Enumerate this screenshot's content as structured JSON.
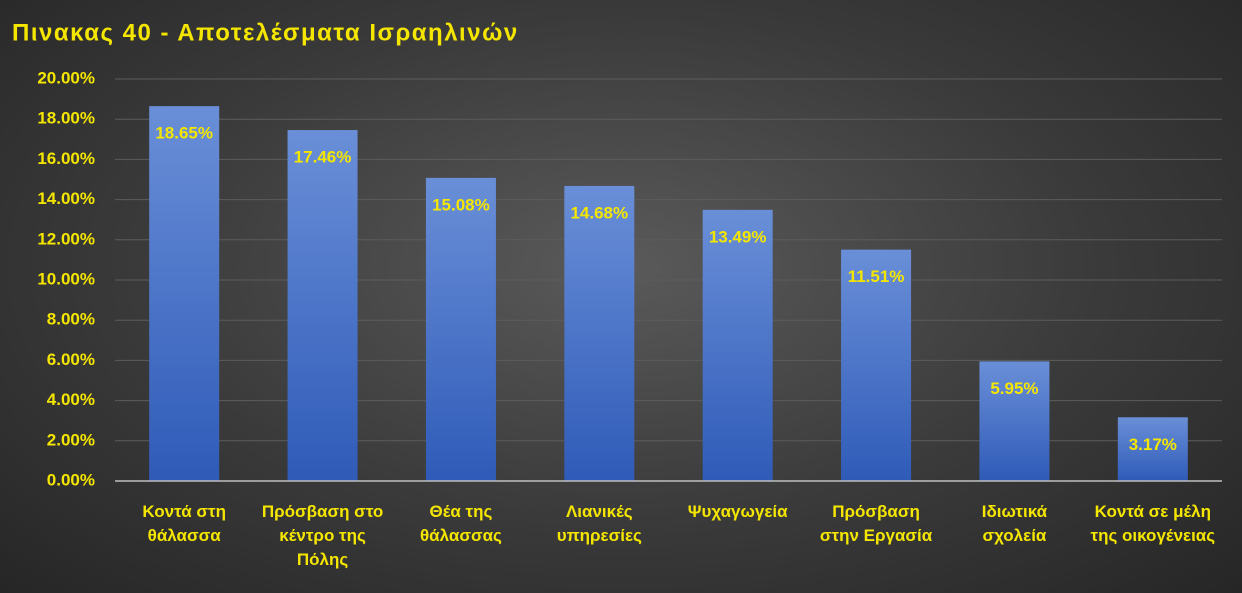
{
  "chart_data": {
    "type": "bar",
    "title": "Πινακας 40 - Αποτελέσματα Ισραηλινών",
    "categories": [
      "Κοντά στη θάλασσα",
      "Πρόσβαση στο κέντρο της Πόλης",
      "Θέα της θάλασσας",
      "Λιανικές υπηρεσίες",
      "Ψυχαγωγεία",
      "Πρόσβαση στην Εργασία",
      "Ιδιωτικά σχολεία",
      "Κοντά σε μέλη της οικογένειας"
    ],
    "values": [
      18.65,
      17.46,
      15.08,
      14.68,
      13.49,
      11.51,
      5.95,
      3.17
    ],
    "value_labels": [
      "18.65%",
      "17.46%",
      "15.08%",
      "14.68%",
      "13.49%",
      "11.51%",
      "5.95%",
      "3.17%"
    ],
    "color": "#4472c4",
    "ylim": [
      0,
      20
    ],
    "yticks": [
      {
        "value": 0,
        "label": "0.00%"
      },
      {
        "value": 2,
        "label": "2.00%"
      },
      {
        "value": 4,
        "label": "4.00%"
      },
      {
        "value": 6,
        "label": "6.00%"
      },
      {
        "value": 8,
        "label": "8.00%"
      },
      {
        "value": 10,
        "label": "10.00%"
      },
      {
        "value": 12,
        "label": "12.00%"
      },
      {
        "value": 14,
        "label": "14.00%"
      },
      {
        "value": 16,
        "label": "16.00%"
      },
      {
        "value": 18,
        "label": "18.00%"
      },
      {
        "value": 20,
        "label": "20.00%"
      }
    ],
    "grid": true
  }
}
